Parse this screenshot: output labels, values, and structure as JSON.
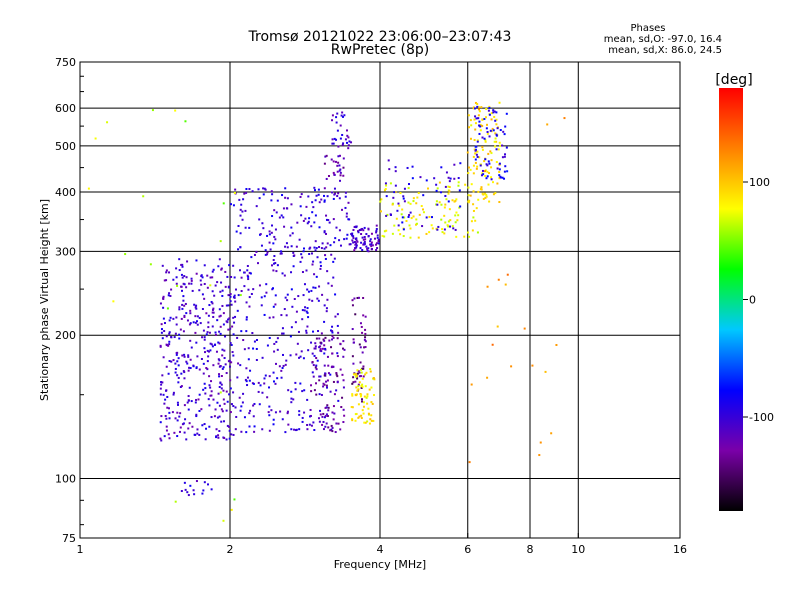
{
  "chart_data": {
    "type": "scatter",
    "title": "Tromsø 20121022 23:06:00–23:07:43",
    "subtitle": "RwPretec (8p)",
    "xlabel": "Frequency [MHz]",
    "ylabel": "Stationary phase Virtual Height [km]",
    "x_scale": "log",
    "y_scale": "log",
    "xlim": [
      1,
      16
    ],
    "ylim": [
      75,
      750
    ],
    "x_ticks": [
      1,
      2,
      4,
      6,
      8,
      10,
      16
    ],
    "x_tick_labels": [
      "1",
      "2",
      "4",
      "6",
      "8",
      "10",
      "16"
    ],
    "y_ticks": [
      75,
      100,
      200,
      300,
      400,
      500,
      600,
      750
    ],
    "y_tick_labels": [
      "75",
      "100",
      "200",
      "300",
      "400",
      "500",
      "600",
      "750"
    ],
    "grid": true,
    "phases": {
      "title": "Phases",
      "line_o": "mean, sd,O: -97.0, 16.4",
      "line_x": "mean, sd,X:  86.0, 24.5"
    },
    "colorbar": {
      "label": "[deg]",
      "range": [
        -180,
        180
      ],
      "ticks": [
        100,
        0,
        -100
      ],
      "tick_labels": [
        "100",
        "0",
        "-100"
      ]
    },
    "color_scale": [
      "#000000",
      "#7a00a8",
      "#0000ff",
      "#00c8ff",
      "#00ff00",
      "#ffff00",
      "#ff8000",
      "#ff0000"
    ],
    "clusters": [
      {
        "f": [
          1.45,
          2.05
        ],
        "h": [
          120,
          290
        ],
        "phase": -105,
        "n": 420
      },
      {
        "f": [
          2.05,
          3.3
        ],
        "h": [
          125,
          310
        ],
        "phase": -100,
        "n": 320
      },
      {
        "f": [
          2.0,
          3.5
        ],
        "h": [
          300,
          410
        ],
        "phase": -100,
        "n": 150
      },
      {
        "f": [
          2.9,
          3.4
        ],
        "h": [
          125,
          200
        ],
        "phase": -125,
        "n": 100
      },
      {
        "f": [
          3.1,
          3.4
        ],
        "h": [
          420,
          480
        ],
        "phase": -120,
        "n": 25
      },
      {
        "f": [
          3.2,
          3.5
        ],
        "h": [
          490,
          590
        ],
        "phase": -105,
        "n": 30
      },
      {
        "f": [
          3.5,
          4.0
        ],
        "h": [
          300,
          340
        ],
        "phase": -110,
        "n": 80
      },
      {
        "f": [
          3.5,
          3.75
        ],
        "h": [
          145,
          240
        ],
        "phase": -135,
        "n": 50
      },
      {
        "f": [
          3.5,
          3.9
        ],
        "h": [
          130,
          170
        ],
        "phase": 85,
        "n": 70
      },
      {
        "f": [
          4.0,
          6.3
        ],
        "h": [
          320,
          420
        ],
        "phase": 80,
        "n": 110
      },
      {
        "f": [
          4.1,
          5.8
        ],
        "h": [
          330,
          470
        ],
        "phase": -95,
        "n": 60
      },
      {
        "f": [
          6.0,
          7.0
        ],
        "h": [
          380,
          620
        ],
        "phase": 90,
        "n": 110
      },
      {
        "f": [
          6.2,
          7.2
        ],
        "h": [
          420,
          610
        ],
        "phase": -90,
        "n": 70
      },
      {
        "f": [
          6.0,
          9.5
        ],
        "h": [
          100,
          620
        ],
        "phase": 120,
        "n": 22
      },
      {
        "f": [
          1.0,
          2.2
        ],
        "h": [
          80,
          640
        ],
        "phase": 60,
        "n": 22
      },
      {
        "f": [
          1.6,
          1.85
        ],
        "h": [
          92,
          100
        ],
        "phase": -100,
        "n": 14
      }
    ]
  }
}
